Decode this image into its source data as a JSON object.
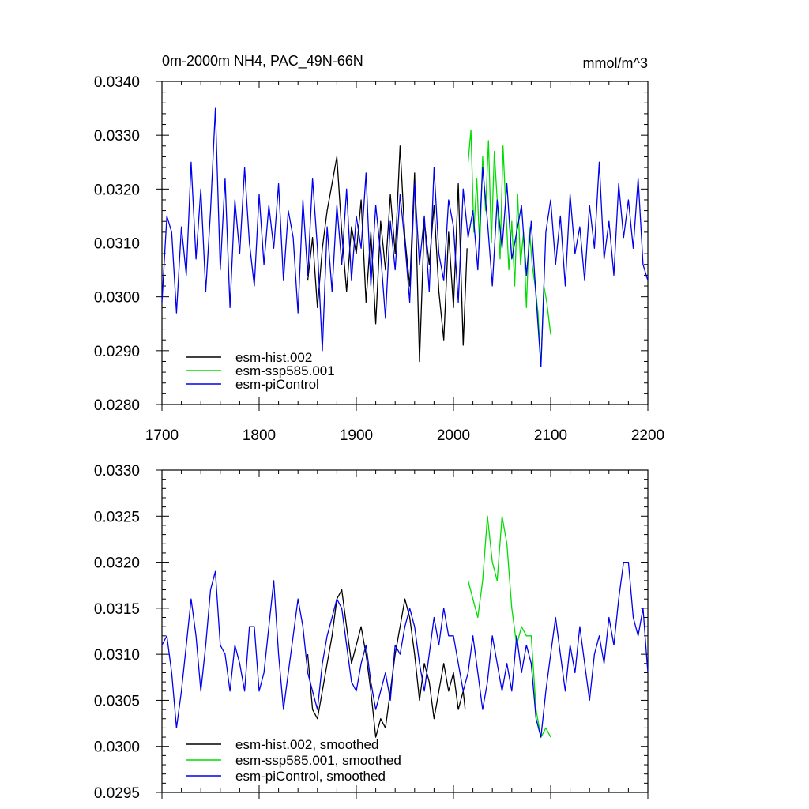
{
  "chart_data": [
    {
      "type": "line",
      "title": "0m-2000m NH4, PAC_49N-66N",
      "units": "mmol/m^3",
      "xlim": [
        1700,
        2200
      ],
      "ylim": [
        0.028,
        0.034
      ],
      "xticks": [
        1700,
        1800,
        1900,
        2000,
        2100,
        2200
      ],
      "xtick_labels": [
        "1700",
        "1800",
        "1900",
        "2000",
        "2100",
        "2200"
      ],
      "yticks": [
        0.028,
        0.029,
        0.03,
        0.031,
        0.032,
        0.033,
        0.034
      ],
      "ytick_labels": [
        "0.0280",
        "0.0290",
        "0.0300",
        "0.0310",
        "0.0320",
        "0.0330",
        "0.0340"
      ],
      "legend_position": "bottom-left",
      "series": [
        {
          "name": "esm-hist.002",
          "color": "#000000",
          "x": [
            1850,
            1855,
            1860,
            1865,
            1870,
            1875,
            1880,
            1885,
            1890,
            1895,
            1900,
            1905,
            1910,
            1915,
            1920,
            1925,
            1930,
            1935,
            1940,
            1945,
            1950,
            1955,
            1960,
            1965,
            1970,
            1975,
            1980,
            1985,
            1990,
            1995,
            2000,
            2005,
            2010,
            2014
          ],
          "values": [
            0.0303,
            0.0311,
            0.0298,
            0.0309,
            0.0316,
            0.0321,
            0.0326,
            0.0312,
            0.0301,
            0.0313,
            0.0308,
            0.0318,
            0.0299,
            0.0312,
            0.0295,
            0.0314,
            0.0305,
            0.0319,
            0.0308,
            0.0328,
            0.0311,
            0.0302,
            0.0323,
            0.0288,
            0.0314,
            0.0306,
            0.0317,
            0.0301,
            0.0292,
            0.0312,
            0.0298,
            0.0321,
            0.0291,
            0.0309
          ]
        },
        {
          "name": "esm-ssp585.001",
          "color": "#00dd00",
          "x": [
            2015,
            2018,
            2021,
            2024,
            2027,
            2030,
            2033,
            2036,
            2039,
            2042,
            2045,
            2048,
            2051,
            2054,
            2057,
            2060,
            2063,
            2066,
            2069,
            2072,
            2075,
            2078,
            2081,
            2084,
            2087,
            2090,
            2093,
            2096,
            2100
          ],
          "values": [
            0.0325,
            0.0331,
            0.0312,
            0.0322,
            0.0309,
            0.0326,
            0.0316,
            0.0329,
            0.031,
            0.0327,
            0.0318,
            0.0307,
            0.0328,
            0.0316,
            0.0305,
            0.0314,
            0.0302,
            0.0319,
            0.0306,
            0.0312,
            0.0298,
            0.0313,
            0.0306,
            0.0302,
            0.0297,
            0.0287,
            0.0302,
            0.0299,
            0.0293
          ]
        },
        {
          "name": "esm-piControl",
          "color": "#0000ee",
          "x": [
            1700,
            1705,
            1710,
            1715,
            1720,
            1725,
            1730,
            1735,
            1740,
            1745,
            1750,
            1755,
            1760,
            1765,
            1770,
            1775,
            1780,
            1785,
            1790,
            1795,
            1800,
            1805,
            1810,
            1815,
            1820,
            1825,
            1830,
            1835,
            1840,
            1845,
            1850,
            1855,
            1860,
            1865,
            1870,
            1875,
            1880,
            1885,
            1890,
            1895,
            1900,
            1905,
            1910,
            1915,
            1920,
            1925,
            1930,
            1935,
            1940,
            1945,
            1950,
            1955,
            1960,
            1965,
            1970,
            1975,
            1980,
            1985,
            1990,
            1995,
            2000,
            2005,
            2010,
            2015,
            2020,
            2025,
            2030,
            2035,
            2040,
            2045,
            2050,
            2055,
            2060,
            2065,
            2070,
            2075,
            2080,
            2085,
            2090,
            2095,
            2100,
            2105,
            2110,
            2115,
            2120,
            2125,
            2130,
            2135,
            2140,
            2145,
            2150,
            2155,
            2160,
            2165,
            2170,
            2175,
            2180,
            2185,
            2190,
            2195,
            2200
          ],
          "values": [
            0.0299,
            0.0315,
            0.0312,
            0.0297,
            0.0313,
            0.0304,
            0.0325,
            0.0307,
            0.032,
            0.0301,
            0.0316,
            0.0335,
            0.0305,
            0.0322,
            0.0298,
            0.0318,
            0.0308,
            0.0324,
            0.031,
            0.0302,
            0.0319,
            0.0306,
            0.0317,
            0.0309,
            0.0321,
            0.0303,
            0.0316,
            0.0311,
            0.0297,
            0.0318,
            0.0304,
            0.0322,
            0.0309,
            0.029,
            0.0313,
            0.0301,
            0.0317,
            0.0306,
            0.032,
            0.0303,
            0.0315,
            0.0309,
            0.0323,
            0.0302,
            0.0317,
            0.0308,
            0.0296,
            0.0314,
            0.0305,
            0.0319,
            0.031,
            0.0299,
            0.0321,
            0.0306,
            0.0315,
            0.0301,
            0.0324,
            0.0308,
            0.0303,
            0.0318,
            0.0313,
            0.0299,
            0.032,
            0.0311,
            0.0316,
            0.0305,
            0.0324,
            0.0314,
            0.0302,
            0.0318,
            0.0309,
            0.0321,
            0.0307,
            0.0312,
            0.0317,
            0.0304,
            0.0314,
            0.03,
            0.0287,
            0.0312,
            0.0318,
            0.0306,
            0.0315,
            0.0302,
            0.0319,
            0.0308,
            0.0313,
            0.0303,
            0.0317,
            0.0309,
            0.0325,
            0.0307,
            0.0314,
            0.0304,
            0.0321,
            0.0311,
            0.0318,
            0.0309,
            0.0322,
            0.0306,
            0.0303
          ]
        }
      ]
    },
    {
      "type": "line",
      "xlim": [
        1700,
        2200
      ],
      "ylim": [
        0.0295,
        0.033
      ],
      "xticks": [
        1700,
        1800,
        1900,
        2000,
        2100,
        2200
      ],
      "yticks": [
        0.0295,
        0.03,
        0.0305,
        0.031,
        0.0315,
        0.032,
        0.0325,
        0.033
      ],
      "ytick_labels": [
        "0.0295",
        "0.0300",
        "0.0305",
        "0.0310",
        "0.0315",
        "0.0320",
        "0.0325",
        "0.0330"
      ],
      "legend_position": "bottom-left",
      "series": [
        {
          "name": "esm-hist.002, smoothed",
          "color": "#000000",
          "x": [
            1850,
            1855,
            1860,
            1865,
            1870,
            1875,
            1880,
            1885,
            1890,
            1895,
            1900,
            1905,
            1910,
            1915,
            1920,
            1925,
            1930,
            1935,
            1940,
            1945,
            1950,
            1955,
            1960,
            1965,
            1970,
            1975,
            1980,
            1985,
            1990,
            1995,
            2000,
            2005,
            2010,
            2012
          ],
          "values": [
            0.031,
            0.0304,
            0.0303,
            0.0306,
            0.0309,
            0.0312,
            0.0316,
            0.0317,
            0.0313,
            0.0309,
            0.0311,
            0.0313,
            0.031,
            0.0306,
            0.0301,
            0.0303,
            0.0302,
            0.0306,
            0.031,
            0.0313,
            0.0316,
            0.0314,
            0.031,
            0.0305,
            0.0309,
            0.0307,
            0.0303,
            0.0306,
            0.0309,
            0.0306,
            0.0308,
            0.0304,
            0.0306,
            0.0304
          ]
        },
        {
          "name": "esm-ssp585.001, smoothed",
          "color": "#00dd00",
          "x": [
            2015,
            2020,
            2025,
            2030,
            2035,
            2040,
            2045,
            2050,
            2055,
            2060,
            2065,
            2070,
            2075,
            2080,
            2085,
            2090,
            2095,
            2100
          ],
          "values": [
            0.0318,
            0.0316,
            0.0314,
            0.0318,
            0.0325,
            0.032,
            0.0318,
            0.0325,
            0.0322,
            0.0315,
            0.0311,
            0.0313,
            0.0312,
            0.0312,
            0.0304,
            0.0301,
            0.0302,
            0.0301
          ]
        },
        {
          "name": "esm-piControl, smoothed",
          "color": "#0000ee",
          "x": [
            1700,
            1705,
            1710,
            1715,
            1720,
            1725,
            1730,
            1735,
            1740,
            1745,
            1750,
            1755,
            1760,
            1765,
            1770,
            1775,
            1780,
            1785,
            1790,
            1795,
            1800,
            1805,
            1810,
            1815,
            1820,
            1825,
            1830,
            1835,
            1840,
            1845,
            1850,
            1855,
            1860,
            1865,
            1870,
            1875,
            1880,
            1885,
            1890,
            1895,
            1900,
            1905,
            1910,
            1915,
            1920,
            1925,
            1930,
            1935,
            1940,
            1945,
            1950,
            1955,
            1960,
            1965,
            1970,
            1975,
            1980,
            1985,
            1990,
            1995,
            2000,
            2005,
            2010,
            2015,
            2020,
            2025,
            2030,
            2035,
            2040,
            2045,
            2050,
            2055,
            2060,
            2065,
            2070,
            2075,
            2080,
            2085,
            2090,
            2095,
            2100,
            2105,
            2110,
            2115,
            2120,
            2125,
            2130,
            2135,
            2140,
            2145,
            2150,
            2155,
            2160,
            2165,
            2170,
            2175,
            2180,
            2185,
            2190,
            2195,
            2200
          ],
          "values": [
            0.0311,
            0.0312,
            0.0308,
            0.0302,
            0.0306,
            0.0311,
            0.0316,
            0.0312,
            0.0306,
            0.0311,
            0.0317,
            0.0319,
            0.0311,
            0.031,
            0.0306,
            0.0311,
            0.0309,
            0.0306,
            0.0313,
            0.0313,
            0.0306,
            0.0308,
            0.0313,
            0.0318,
            0.031,
            0.0304,
            0.0308,
            0.0312,
            0.0316,
            0.0313,
            0.0308,
            0.0306,
            0.0304,
            0.0309,
            0.0312,
            0.0314,
            0.0316,
            0.0315,
            0.0311,
            0.0307,
            0.0306,
            0.0309,
            0.0311,
            0.0307,
            0.0304,
            0.0306,
            0.0308,
            0.0305,
            0.0311,
            0.031,
            0.0313,
            0.0315,
            0.0313,
            0.0309,
            0.0306,
            0.031,
            0.0314,
            0.0311,
            0.0315,
            0.0312,
            0.0312,
            0.0309,
            0.0306,
            0.0308,
            0.0312,
            0.0308,
            0.0304,
            0.0307,
            0.0312,
            0.0309,
            0.0306,
            0.0309,
            0.0306,
            0.0312,
            0.0308,
            0.0311,
            0.0309,
            0.0303,
            0.0301,
            0.0306,
            0.031,
            0.0314,
            0.031,
            0.0306,
            0.0311,
            0.0308,
            0.0313,
            0.0309,
            0.0305,
            0.031,
            0.0312,
            0.0309,
            0.0314,
            0.0311,
            0.0316,
            0.032,
            0.032,
            0.0314,
            0.0312,
            0.0315,
            0.0308
          ]
        }
      ]
    }
  ]
}
